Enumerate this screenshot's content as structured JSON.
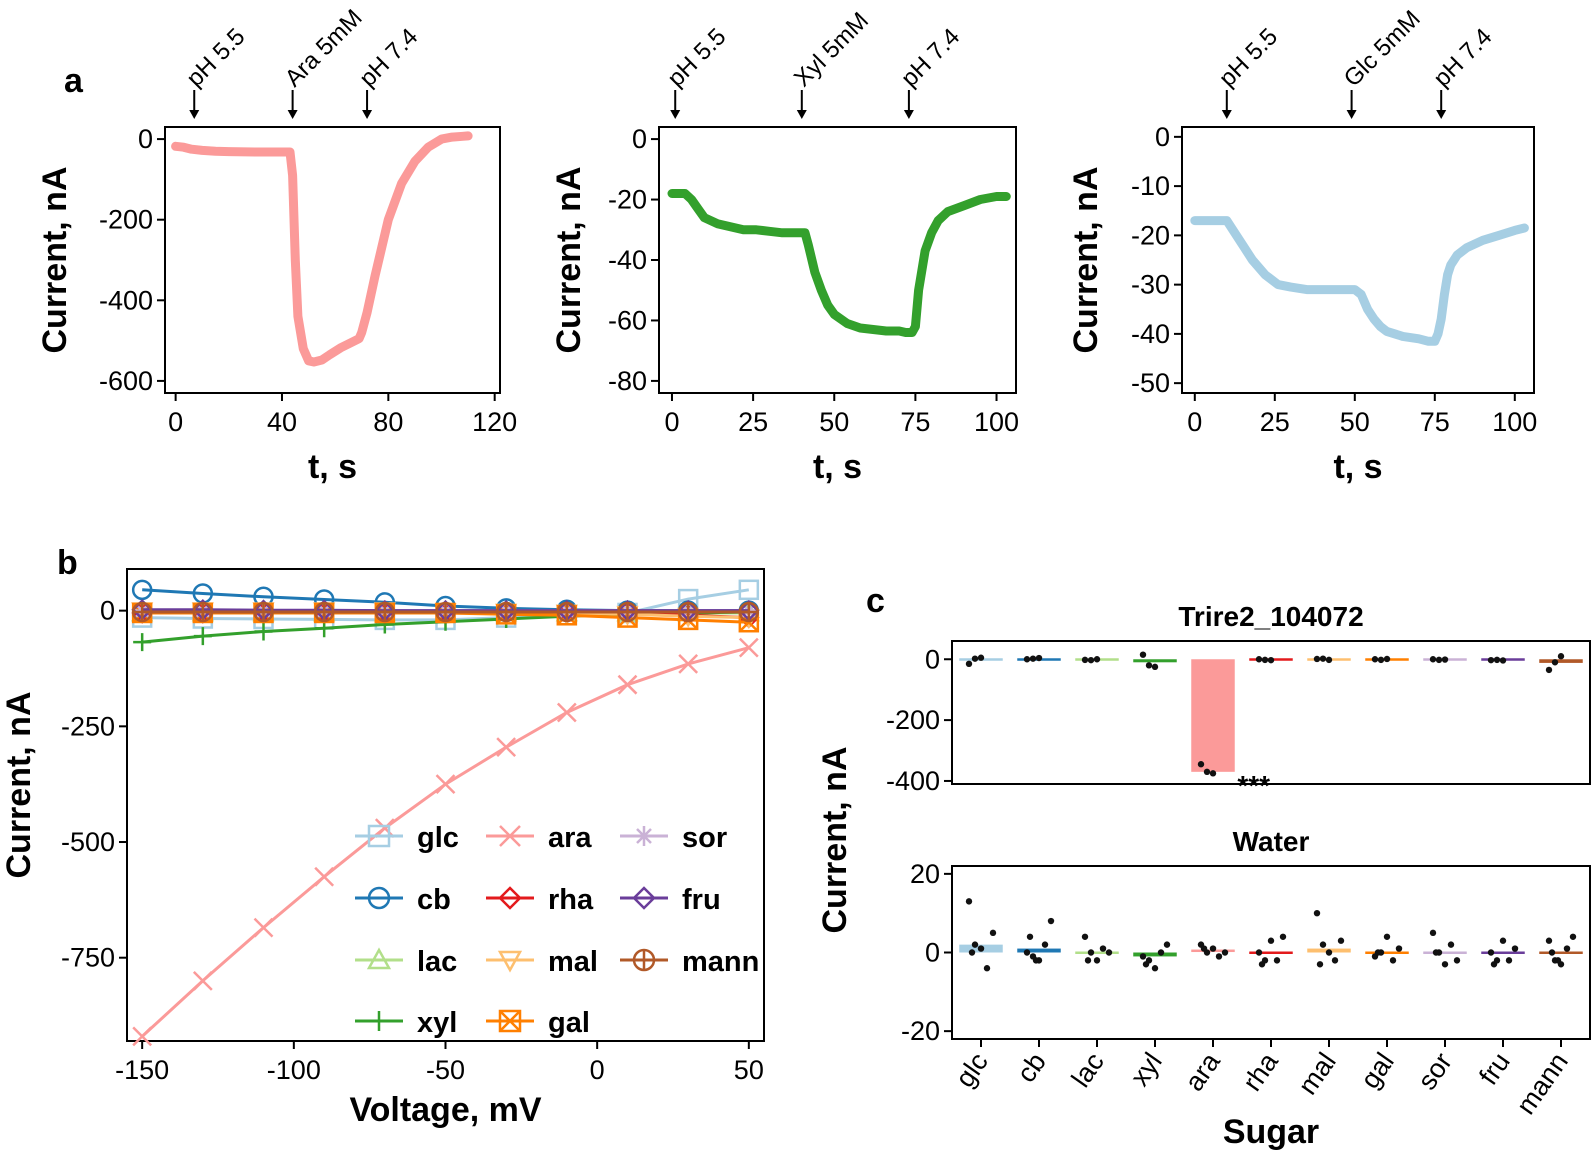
{
  "panel_labels": {
    "a": "a",
    "b": "b",
    "c": "c"
  },
  "chart_data": [
    {
      "type": "line",
      "panel": "a",
      "xlabel": "t, s",
      "ylabel": "Current, nA",
      "xlim": [
        -4,
        122
      ],
      "ylim": [
        -630,
        30
      ],
      "xticks": [
        0,
        40,
        80,
        120
      ],
      "yticks": [
        0,
        -200,
        -400,
        -600
      ],
      "color": "#fb9a99",
      "annotations": [
        {
          "label": "pH 5.5",
          "x": 7
        },
        {
          "label": "Ara 5mM",
          "x": 44
        },
        {
          "label": "pH 7.4",
          "x": 72
        }
      ],
      "x": [
        0,
        3,
        6,
        10,
        15,
        20,
        30,
        40,
        43,
        44,
        45,
        46,
        48,
        50,
        52,
        55,
        58,
        62,
        66,
        69,
        70,
        72,
        75,
        80,
        85,
        90,
        95,
        100,
        104,
        108,
        110
      ],
      "y": [
        -18,
        -20,
        -25,
        -28,
        -30,
        -31,
        -32,
        -32,
        -32,
        -90,
        -300,
        -440,
        -520,
        -550,
        -553,
        -548,
        -535,
        -518,
        -505,
        -495,
        -480,
        -430,
        -340,
        -200,
        -110,
        -55,
        -20,
        0,
        5,
        7,
        8
      ]
    },
    {
      "type": "line",
      "panel": "a",
      "xlabel": "t, s",
      "ylabel": "Current, nA",
      "xlim": [
        -4,
        106
      ],
      "ylim": [
        -84,
        4
      ],
      "xticks": [
        0,
        25,
        50,
        75,
        100
      ],
      "yticks": [
        0,
        -20,
        -40,
        -60,
        -80
      ],
      "color": "#33a02c",
      "annotations": [
        {
          "label": "pH 5.5",
          "x": 1
        },
        {
          "label": "Xyl 5mM",
          "x": 40
        },
        {
          "label": "pH 7.4",
          "x": 73
        }
      ],
      "x": [
        0,
        2,
        4,
        6,
        8,
        10,
        14,
        18,
        22,
        26,
        30,
        34,
        38,
        41,
        42,
        44,
        46,
        48,
        50,
        54,
        58,
        62,
        66,
        70,
        72,
        74,
        75,
        76,
        78,
        80,
        82,
        85,
        90,
        95,
        100,
        103
      ],
      "y": [
        -18,
        -18,
        -18,
        -20,
        -23,
        -26,
        -28,
        -29,
        -30,
        -30,
        -30.5,
        -31,
        -31,
        -31,
        -35,
        -44,
        -50,
        -55,
        -58,
        -61,
        -62.5,
        -63,
        -63.5,
        -63.5,
        -64,
        -64,
        -62,
        -50,
        -37,
        -31,
        -27,
        -24,
        -22,
        -20,
        -19,
        -19
      ]
    },
    {
      "type": "line",
      "panel": "a",
      "xlabel": "t, s",
      "ylabel": "Current, nA",
      "xlim": [
        -4,
        106
      ],
      "ylim": [
        -52,
        2
      ],
      "xticks": [
        0,
        25,
        50,
        75,
        100
      ],
      "yticks": [
        0,
        -10,
        -20,
        -30,
        -40,
        -50
      ],
      "color": "#a6cee3",
      "annotations": [
        {
          "label": "pH 5.5",
          "x": 10
        },
        {
          "label": "Glc 5mM",
          "x": 49
        },
        {
          "label": "pH 7.4",
          "x": 77
        }
      ],
      "x": [
        0,
        5,
        10,
        12,
        15,
        18,
        22,
        26,
        30,
        35,
        40,
        45,
        50,
        52,
        54,
        56,
        58,
        60,
        65,
        70,
        73,
        75,
        76,
        77,
        78,
        79,
        80,
        82,
        85,
        90,
        95,
        100,
        103
      ],
      "y": [
        -17,
        -17,
        -17,
        -19,
        -22,
        -25,
        -28,
        -30,
        -30.5,
        -31,
        -31,
        -31,
        -31,
        -32,
        -35,
        -37,
        -38.5,
        -39.5,
        -40.5,
        -41,
        -41.5,
        -41.5,
        -40,
        -37,
        -32,
        -28,
        -26,
        -24,
        -22.5,
        -21,
        -20,
        -19,
        -18.5
      ]
    },
    {
      "type": "line",
      "panel": "b",
      "xlabel": "Voltage, mV",
      "ylabel": "Current, nA",
      "xlim": [
        -155,
        55
      ],
      "ylim": [
        -930,
        90
      ],
      "xticks": [
        -150,
        -100,
        -50,
        0,
        50
      ],
      "yticks": [
        0,
        -250,
        -500,
        -750
      ],
      "x": [
        -150,
        -130,
        -110,
        -90,
        -70,
        -50,
        -30,
        -10,
        10,
        30,
        50
      ],
      "series": [
        {
          "name": "glc",
          "color": "#a6cee3",
          "marker": "square",
          "values": [
            -15,
            -17,
            -18,
            -19,
            -20,
            -20,
            -15,
            -10,
            -5,
            25,
            45
          ]
        },
        {
          "name": "cb",
          "color": "#1f78b4",
          "marker": "circle",
          "values": [
            45,
            37,
            30,
            24,
            18,
            10,
            5,
            2,
            0,
            0,
            0
          ]
        },
        {
          "name": "lac",
          "color": "#b2df8a",
          "marker": "triangle-up",
          "values": [
            -5,
            -5,
            -5,
            -5,
            -5,
            -5,
            -5,
            -5,
            -5,
            -5,
            -5
          ]
        },
        {
          "name": "xyl",
          "color": "#33a02c",
          "marker": "plus",
          "values": [
            -68,
            -55,
            -45,
            -38,
            -30,
            -24,
            -18,
            -12,
            -8,
            -5,
            -3
          ]
        },
        {
          "name": "ara",
          "color": "#fb9a99",
          "marker": "x",
          "values": [
            -920,
            -800,
            -685,
            -575,
            -470,
            -375,
            -295,
            -220,
            -160,
            -115,
            -80
          ]
        },
        {
          "name": "rha",
          "color": "#e31a1c",
          "marker": "diamond",
          "values": [
            -5,
            -5,
            -5,
            -5,
            -5,
            -5,
            -5,
            -5,
            -5,
            -10,
            -15
          ]
        },
        {
          "name": "mal",
          "color": "#fdbf6f",
          "marker": "triangle-down",
          "values": [
            0,
            0,
            0,
            0,
            0,
            -2,
            -3,
            -5,
            -8,
            -12,
            -15
          ]
        },
        {
          "name": "gal",
          "color": "#ff7f00",
          "marker": "square-x",
          "values": [
            -5,
            -5,
            -5,
            -5,
            -5,
            -5,
            -8,
            -10,
            -15,
            -20,
            -25
          ]
        },
        {
          "name": "sor",
          "color": "#cab2d6",
          "marker": "star",
          "values": [
            0,
            0,
            0,
            0,
            0,
            0,
            0,
            0,
            0,
            0,
            0
          ]
        },
        {
          "name": "fru",
          "color": "#6a3d9a",
          "marker": "diamond",
          "values": [
            2,
            2,
            1,
            1,
            0,
            0,
            0,
            0,
            0,
            0,
            0
          ]
        },
        {
          "name": "mann",
          "color": "#b15928",
          "marker": "circle-plus",
          "values": [
            -3,
            -3,
            -3,
            -3,
            -3,
            -3,
            -3,
            -3,
            -3,
            -3,
            -3
          ]
        }
      ]
    },
    {
      "type": "bar",
      "panel": "c",
      "title": "Trire2_104072",
      "ylabel": "Current, nA",
      "ylim": [
        -410,
        60
      ],
      "yticks": [
        0,
        -200,
        -400
      ],
      "categories": [
        "glc",
        "cb",
        "lac",
        "xyl",
        "ara",
        "rha",
        "mal",
        "gal",
        "sor",
        "fru",
        "mann"
      ],
      "values": [
        -3,
        -2,
        -1,
        -10,
        -370,
        -1,
        -1,
        -2,
        -1,
        -2,
        -12
      ],
      "points": [
        [
          -15,
          2,
          5
        ],
        [
          0,
          2,
          4
        ],
        [
          -2,
          -3,
          0
        ],
        [
          15,
          -20,
          -25
        ],
        [
          -345,
          -370,
          -375
        ],
        [
          0,
          -2,
          -3
        ],
        [
          1,
          2,
          -2
        ],
        [
          0,
          -2,
          1
        ],
        [
          0,
          -2,
          -1
        ],
        [
          -3,
          -2,
          -4
        ],
        [
          -35,
          -10,
          10
        ]
      ],
      "annotation": "***",
      "colors": [
        "#a6cee3",
        "#1f78b4",
        "#b2df8a",
        "#33a02c",
        "#fb9a99",
        "#e31a1c",
        "#fdbf6f",
        "#ff7f00",
        "#cab2d6",
        "#6a3d9a",
        "#b15928"
      ]
    },
    {
      "type": "bar",
      "panel": "c",
      "title": "Water",
      "xlabel": "Sugar",
      "ylabel": "Current, nA",
      "ylim": [
        -22,
        22
      ],
      "yticks": [
        20,
        0,
        -20
      ],
      "categories": [
        "glc",
        "cb",
        "lac",
        "xyl",
        "ara",
        "rha",
        "mal",
        "gal",
        "sor",
        "fru",
        "mann"
      ],
      "values": [
        2,
        1,
        0,
        -1,
        0.5,
        0,
        1,
        0,
        0,
        -0.5,
        0
      ],
      "points": [
        [
          13,
          2,
          1,
          -4,
          5,
          0
        ],
        [
          0,
          -1,
          -2,
          2,
          8,
          4,
          -2
        ],
        [
          4,
          0,
          -2,
          1,
          0,
          -2
        ],
        [
          -1,
          -2,
          -4,
          0,
          2,
          -3
        ],
        [
          2,
          0,
          1,
          -1,
          0,
          1
        ],
        [
          0,
          -2,
          3,
          -2,
          4,
          -3
        ],
        [
          10,
          2,
          0,
          -2,
          3,
          -3
        ],
        [
          -1,
          0,
          4,
          -2,
          1,
          0
        ],
        [
          5,
          0,
          -3,
          2,
          -2,
          0
        ],
        [
          0,
          -2,
          3,
          -2,
          1,
          -3
        ],
        [
          3,
          -2,
          -3,
          1,
          4,
          0,
          -2
        ]
      ],
      "colors": [
        "#a6cee3",
        "#1f78b4",
        "#b2df8a",
        "#33a02c",
        "#fb9a99",
        "#e31a1c",
        "#fdbf6f",
        "#ff7f00",
        "#cab2d6",
        "#6a3d9a",
        "#b15928"
      ]
    }
  ]
}
